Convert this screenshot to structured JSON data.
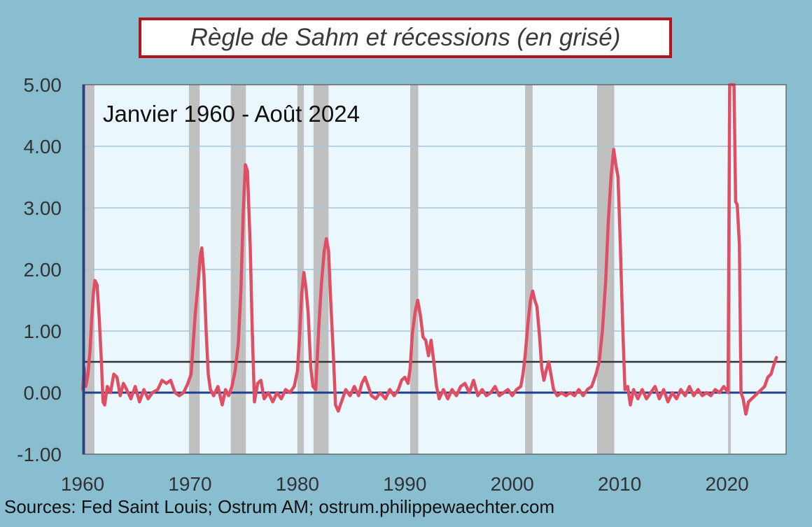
{
  "colors": {
    "background": "#89bdd0",
    "plot_bg": "#eaf7fc",
    "recession": "#c0c0c0",
    "series": "#e04e64",
    "threshold": "#333333",
    "zero": "#1d3f8f",
    "grid": "#a8c4d8",
    "title_border": "#b3151b"
  },
  "source": "Sources: Fed Saint Louis; Ostrum AM; ostrum.philippewaechter.com",
  "chart_data": {
    "type": "line",
    "title": "Règle de Sahm et récessions (en grisé)",
    "subtitle": "Janvier 1960 - Août 2024",
    "xlim": [
      1960,
      2025.5
    ],
    "ylim": [
      -1,
      5
    ],
    "yticks": [
      -1,
      0,
      1,
      2,
      3,
      4,
      5
    ],
    "ytick_labels": [
      "-1.00",
      "0.00",
      "1.00",
      "2.00",
      "3.00",
      "4.00",
      "5.00"
    ],
    "xticks": [
      1960,
      1970,
      1980,
      1990,
      2000,
      2010,
      2020
    ],
    "xtick_labels": [
      "1960",
      "1970",
      "1980",
      "1990",
      "2000",
      "2010",
      "2020"
    ],
    "grid": true,
    "threshold": 0.5,
    "recessions": [
      [
        1960.25,
        1961.1
      ],
      [
        1969.9,
        1970.9
      ],
      [
        1973.8,
        1975.2
      ],
      [
        1980.0,
        1980.6
      ],
      [
        1981.5,
        1982.9
      ],
      [
        1990.5,
        1991.25
      ],
      [
        2001.2,
        2001.9
      ],
      [
        2007.9,
        2009.5
      ],
      [
        2020.1,
        2020.35
      ]
    ],
    "series": [
      {
        "values": [
          [
            1960.0,
            0.05
          ],
          [
            1960.15,
            0.4
          ],
          [
            1960.3,
            0.1
          ],
          [
            1960.5,
            0.3
          ],
          [
            1960.7,
            0.7
          ],
          [
            1960.85,
            1.2
          ],
          [
            1961.0,
            1.6
          ],
          [
            1961.15,
            1.82
          ],
          [
            1961.35,
            1.75
          ],
          [
            1961.55,
            1.2
          ],
          [
            1961.75,
            0.5
          ],
          [
            1961.9,
            -0.15
          ],
          [
            1962.05,
            -0.2
          ],
          [
            1962.3,
            0.1
          ],
          [
            1962.6,
            0.0
          ],
          [
            1962.9,
            0.3
          ],
          [
            1963.2,
            0.25
          ],
          [
            1963.5,
            -0.05
          ],
          [
            1963.8,
            0.15
          ],
          [
            1964.1,
            0.05
          ],
          [
            1964.5,
            -0.1
          ],
          [
            1964.9,
            0.1
          ],
          [
            1965.3,
            -0.15
          ],
          [
            1965.7,
            0.05
          ],
          [
            1966.1,
            -0.1
          ],
          [
            1966.5,
            0.0
          ],
          [
            1967.0,
            0.05
          ],
          [
            1967.4,
            0.2
          ],
          [
            1967.8,
            0.15
          ],
          [
            1968.2,
            0.2
          ],
          [
            1968.6,
            0.0
          ],
          [
            1969.0,
            -0.05
          ],
          [
            1969.4,
            0.0
          ],
          [
            1969.8,
            0.15
          ],
          [
            1970.1,
            0.3
          ],
          [
            1970.3,
            0.8
          ],
          [
            1970.5,
            1.3
          ],
          [
            1970.75,
            1.75
          ],
          [
            1970.95,
            2.2
          ],
          [
            1971.1,
            2.35
          ],
          [
            1971.3,
            1.9
          ],
          [
            1971.5,
            1.0
          ],
          [
            1971.7,
            0.3
          ],
          [
            1971.9,
            0.05
          ],
          [
            1972.2,
            -0.05
          ],
          [
            1972.6,
            0.1
          ],
          [
            1973.0,
            -0.2
          ],
          [
            1973.3,
            0.05
          ],
          [
            1973.6,
            -0.05
          ],
          [
            1973.9,
            0.1
          ],
          [
            1974.2,
            0.35
          ],
          [
            1974.5,
            0.8
          ],
          [
            1974.75,
            1.7
          ],
          [
            1974.95,
            2.9
          ],
          [
            1975.15,
            3.7
          ],
          [
            1975.35,
            3.6
          ],
          [
            1975.6,
            2.4
          ],
          [
            1975.8,
            1.0
          ],
          [
            1976.0,
            -0.15
          ],
          [
            1976.3,
            0.15
          ],
          [
            1976.6,
            0.2
          ],
          [
            1976.9,
            -0.1
          ],
          [
            1977.3,
            0.0
          ],
          [
            1977.7,
            -0.15
          ],
          [
            1978.1,
            0.0
          ],
          [
            1978.5,
            -0.1
          ],
          [
            1978.9,
            0.05
          ],
          [
            1979.3,
            0.0
          ],
          [
            1979.7,
            0.1
          ],
          [
            1980.0,
            0.35
          ],
          [
            1980.2,
            0.9
          ],
          [
            1980.4,
            1.6
          ],
          [
            1980.6,
            1.95
          ],
          [
            1980.8,
            1.7
          ],
          [
            1981.0,
            1.3
          ],
          [
            1981.25,
            0.4
          ],
          [
            1981.45,
            0.1
          ],
          [
            1981.7,
            0.05
          ],
          [
            1982.0,
            1.1
          ],
          [
            1982.25,
            1.8
          ],
          [
            1982.5,
            2.3
          ],
          [
            1982.7,
            2.5
          ],
          [
            1982.9,
            2.3
          ],
          [
            1983.1,
            1.5
          ],
          [
            1983.35,
            0.6
          ],
          [
            1983.55,
            -0.2
          ],
          [
            1983.8,
            -0.3
          ],
          [
            1984.1,
            -0.15
          ],
          [
            1984.5,
            0.05
          ],
          [
            1984.9,
            -0.05
          ],
          [
            1985.3,
            0.1
          ],
          [
            1985.7,
            -0.05
          ],
          [
            1986.0,
            0.15
          ],
          [
            1986.3,
            0.25
          ],
          [
            1986.6,
            0.1
          ],
          [
            1986.9,
            -0.05
          ],
          [
            1987.3,
            -0.1
          ],
          [
            1987.7,
            0.0
          ],
          [
            1988.2,
            -0.1
          ],
          [
            1988.6,
            0.05
          ],
          [
            1989.0,
            -0.05
          ],
          [
            1989.4,
            0.05
          ],
          [
            1989.7,
            0.2
          ],
          [
            1990.0,
            0.25
          ],
          [
            1990.3,
            0.15
          ],
          [
            1990.5,
            0.4
          ],
          [
            1990.7,
            0.95
          ],
          [
            1990.95,
            1.3
          ],
          [
            1991.2,
            1.5
          ],
          [
            1991.45,
            1.25
          ],
          [
            1991.7,
            0.9
          ],
          [
            1991.95,
            0.85
          ],
          [
            1992.2,
            0.6
          ],
          [
            1992.45,
            0.85
          ],
          [
            1992.7,
            0.5
          ],
          [
            1992.95,
            0.1
          ],
          [
            1993.2,
            -0.1
          ],
          [
            1993.6,
            0.05
          ],
          [
            1994.0,
            -0.1
          ],
          [
            1994.4,
            0.05
          ],
          [
            1994.8,
            -0.05
          ],
          [
            1995.2,
            0.1
          ],
          [
            1995.6,
            0.15
          ],
          [
            1996.0,
            0.0
          ],
          [
            1996.4,
            0.2
          ],
          [
            1996.8,
            -0.05
          ],
          [
            1997.2,
            0.05
          ],
          [
            1997.6,
            -0.05
          ],
          [
            1998.0,
            0.0
          ],
          [
            1998.4,
            0.1
          ],
          [
            1998.8,
            -0.05
          ],
          [
            1999.2,
            0.0
          ],
          [
            1999.6,
            0.05
          ],
          [
            2000.0,
            -0.05
          ],
          [
            2000.4,
            0.05
          ],
          [
            2000.8,
            0.1
          ],
          [
            2001.0,
            0.3
          ],
          [
            2001.2,
            0.6
          ],
          [
            2001.45,
            1.1
          ],
          [
            2001.7,
            1.5
          ],
          [
            2001.9,
            1.65
          ],
          [
            2002.1,
            1.5
          ],
          [
            2002.3,
            1.4
          ],
          [
            2002.55,
            0.9
          ],
          [
            2002.75,
            0.4
          ],
          [
            2002.95,
            0.2
          ],
          [
            2003.15,
            0.35
          ],
          [
            2003.4,
            0.5
          ],
          [
            2003.6,
            0.3
          ],
          [
            2003.85,
            0.05
          ],
          [
            2004.2,
            -0.05
          ],
          [
            2004.6,
            0.0
          ],
          [
            2005.0,
            -0.05
          ],
          [
            2005.4,
            0.0
          ],
          [
            2005.8,
            -0.05
          ],
          [
            2006.2,
            0.05
          ],
          [
            2006.6,
            -0.05
          ],
          [
            2007.0,
            0.05
          ],
          [
            2007.4,
            0.1
          ],
          [
            2007.8,
            0.3
          ],
          [
            2008.1,
            0.5
          ],
          [
            2008.4,
            1.0
          ],
          [
            2008.7,
            1.8
          ],
          [
            2008.95,
            2.8
          ],
          [
            2009.2,
            3.5
          ],
          [
            2009.45,
            3.95
          ],
          [
            2009.65,
            3.7
          ],
          [
            2009.85,
            3.5
          ],
          [
            2010.05,
            2.5
          ],
          [
            2010.3,
            1.0
          ],
          [
            2010.5,
            0.05
          ],
          [
            2010.75,
            0.1
          ],
          [
            2011.0,
            -0.2
          ],
          [
            2011.3,
            0.05
          ],
          [
            2011.7,
            -0.1
          ],
          [
            2012.1,
            0.05
          ],
          [
            2012.5,
            -0.1
          ],
          [
            2012.9,
            0.0
          ],
          [
            2013.3,
            0.1
          ],
          [
            2013.7,
            -0.1
          ],
          [
            2014.1,
            0.05
          ],
          [
            2014.5,
            -0.15
          ],
          [
            2014.9,
            0.0
          ],
          [
            2015.3,
            -0.1
          ],
          [
            2015.7,
            0.05
          ],
          [
            2016.1,
            -0.05
          ],
          [
            2016.5,
            0.1
          ],
          [
            2016.9,
            -0.05
          ],
          [
            2017.3,
            0.05
          ],
          [
            2017.7,
            -0.05
          ],
          [
            2018.1,
            0.0
          ],
          [
            2018.5,
            -0.05
          ],
          [
            2018.9,
            0.05
          ],
          [
            2019.3,
            0.0
          ],
          [
            2019.7,
            0.1
          ],
          [
            2019.9,
            0.05
          ],
          [
            2020.1,
            0.0
          ],
          [
            2020.25,
            5.0
          ],
          [
            2020.65,
            5.0
          ],
          [
            2020.8,
            3.1
          ],
          [
            2020.95,
            3.05
          ],
          [
            2021.15,
            2.4
          ],
          [
            2021.3,
            0.0
          ],
          [
            2021.5,
            -0.1
          ],
          [
            2021.75,
            -0.35
          ],
          [
            2022.0,
            -0.15
          ],
          [
            2022.3,
            -0.1
          ],
          [
            2022.6,
            -0.05
          ],
          [
            2022.9,
            0.0
          ],
          [
            2023.2,
            0.05
          ],
          [
            2023.5,
            0.1
          ],
          [
            2023.8,
            0.25
          ],
          [
            2024.1,
            0.3
          ],
          [
            2024.35,
            0.45
          ],
          [
            2024.6,
            0.57
          ]
        ]
      }
    ]
  }
}
